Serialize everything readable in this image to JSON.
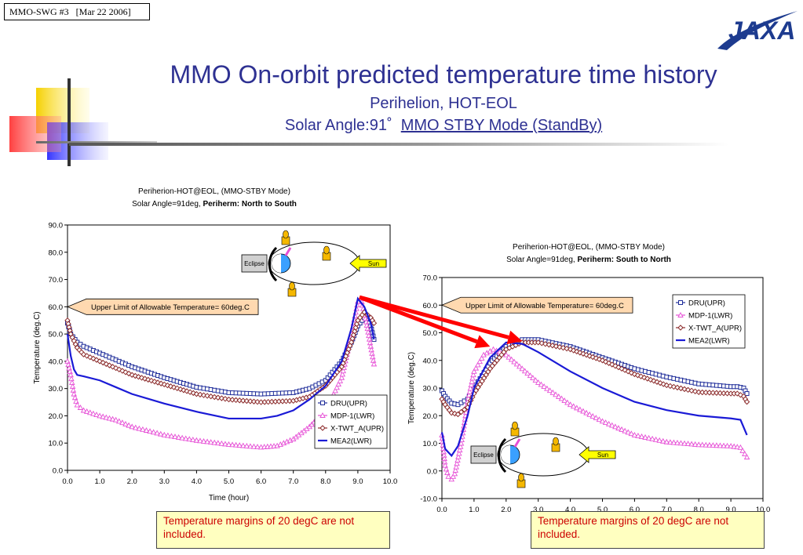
{
  "header": {
    "badge": "MMO-SWG #3   [Mar 22 2006]",
    "logo_text": "JAXA",
    "title": "MMO On-orbit predicted temperature time history",
    "subtitle1": "Perihelion, HOT-EOL",
    "subtitle2_prefix": "Solar Angle:91˚  ",
    "subtitle2_link": "MMO STBY Mode (StandBy)"
  },
  "colors": {
    "title": "#2e3192",
    "dru": "#1f2d9a",
    "mdp": "#e64fd6",
    "twt": "#8b2a2a",
    "mea": "#1a1ad6",
    "arrow": "#ff0000",
    "limit_box": "#ffd9b0",
    "note_bg": "#ffffc0",
    "note_text": "#cc0000"
  },
  "notes": [
    "Temperature margins of 20 degC are not included.",
    "Temperature margins of 20 degC are not included."
  ],
  "chart_data": [
    {
      "type": "line",
      "title": "Periherion-HOT@EOL, (MMO-STBY Mode)",
      "subtitle_prefix": "Solar Angle=91deg, ",
      "subtitle_bold": "Periherm: North to South",
      "xlabel": "Time (hour)",
      "ylabel": "Temperature (deg.C)",
      "xlim": [
        0,
        10
      ],
      "ylim": [
        0,
        90
      ],
      "xticks": [
        "0.0",
        "1.0",
        "2.0",
        "3.0",
        "4.0",
        "5.0",
        "6.0",
        "7.0",
        "8.0",
        "9.0",
        "10.0"
      ],
      "yticks": [
        "0.0",
        "10.0",
        "20.0",
        "30.0",
        "40.0",
        "50.0",
        "60.0",
        "70.0",
        "80.0",
        "90.0"
      ],
      "annotation": "Upper Limit of Allowable Temperature= 60deg.C",
      "inset": {
        "eclipse": "Eclipse",
        "sun": "Sun"
      },
      "legend_position": "bottom-right",
      "series": [
        {
          "name": "DRU(UPR)",
          "key": "dru",
          "x": [
            0.0,
            0.1,
            0.3,
            0.5,
            1.0,
            1.5,
            2.0,
            3.0,
            4.0,
            5.0,
            6.0,
            7.0,
            7.5,
            8.0,
            8.5,
            8.8,
            9.0,
            9.2,
            9.4,
            9.5
          ],
          "y": [
            54,
            50,
            47,
            45.5,
            43,
            40.5,
            38,
            34,
            30.5,
            28.5,
            28,
            28.5,
            30,
            33,
            40,
            47,
            53,
            56,
            53,
            48
          ]
        },
        {
          "name": "MDP-1(LWR)",
          "key": "mdp",
          "x": [
            0.0,
            0.1,
            0.2,
            0.3,
            0.5,
            1.0,
            1.5,
            2.0,
            3.0,
            4.0,
            5.0,
            6.0,
            6.5,
            7.0,
            7.5,
            8.0,
            8.5,
            8.8,
            9.0,
            9.1,
            9.3,
            9.5
          ],
          "y": [
            40,
            35,
            28,
            24,
            22,
            20,
            18.5,
            16,
            13,
            11,
            9.5,
            8.5,
            9,
            11.5,
            16,
            22,
            34,
            50,
            62,
            63,
            52,
            39
          ]
        },
        {
          "name": "X-TWT_A(UPR)",
          "key": "twt",
          "x": [
            0.0,
            0.1,
            0.3,
            0.5,
            1.0,
            1.5,
            2.0,
            3.0,
            4.0,
            5.0,
            6.0,
            7.0,
            7.5,
            8.0,
            8.5,
            8.8,
            9.0,
            9.2,
            9.4,
            9.5
          ],
          "y": [
            55,
            50,
            45,
            42.5,
            40,
            37.5,
            35,
            31.5,
            28,
            26,
            25,
            25.5,
            27,
            31,
            38,
            47,
            55,
            58,
            56,
            54
          ]
        },
        {
          "name": "MEA2(LWR)",
          "key": "mea",
          "x": [
            0.0,
            0.1,
            0.2,
            0.3,
            0.5,
            1.0,
            1.5,
            2.0,
            3.0,
            4.0,
            5.0,
            6.0,
            6.5,
            7.0,
            7.5,
            8.0,
            8.5,
            8.8,
            9.0,
            9.2,
            9.4,
            9.5
          ],
          "y": [
            50,
            42,
            37,
            35,
            34.5,
            33,
            30.5,
            28,
            24.5,
            21.5,
            19,
            19,
            20,
            22,
            26,
            31,
            40,
            52,
            63,
            60,
            54,
            48
          ]
        }
      ]
    },
    {
      "type": "line",
      "title": "Periherion-HOT@EOL, (MMO-STBY Mode)",
      "subtitle_prefix": "Solar Angle=91deg, ",
      "subtitle_bold": "Periherm: South to North",
      "xlabel": "",
      "ylabel": "Temperature (deg.C)",
      "xlim": [
        0,
        10
      ],
      "ylim": [
        -10,
        70
      ],
      "xticks": [
        "0.0",
        "1.0",
        "2.0",
        "3.0",
        "4.0",
        "5.0",
        "6.0",
        "7.0",
        "8.0",
        "9.0",
        "10.0"
      ],
      "yticks": [
        "-10.0",
        "0.0",
        "10.0",
        "20.0",
        "30.0",
        "40.0",
        "50.0",
        "60.0",
        "70.0"
      ],
      "annotation": "Upper Limit of Allowable Temperature= 60deg.C",
      "inset": {
        "eclipse": "Eclipse",
        "sun": "Sun"
      },
      "legend_position": "top-right",
      "series": [
        {
          "name": "DRU(UPR)",
          "key": "dru",
          "x": [
            0.0,
            0.1,
            0.3,
            0.5,
            0.8,
            1.0,
            1.5,
            2.0,
            2.5,
            3.0,
            4.0,
            5.0,
            6.0,
            7.0,
            8.0,
            9.0,
            9.2,
            9.4,
            9.5
          ],
          "y": [
            29,
            27,
            24.5,
            24,
            26,
            30,
            39,
            45,
            47.5,
            47.5,
            45,
            41,
            37,
            34,
            31.5,
            30.5,
            30.5,
            30,
            28
          ]
        },
        {
          "name": "MDP-1(LWR)",
          "key": "mdp",
          "x": [
            0.0,
            0.1,
            0.2,
            0.3,
            0.4,
            0.6,
            0.8,
            1.0,
            1.3,
            1.6,
            2.0,
            2.5,
            3.0,
            4.0,
            5.0,
            6.0,
            7.0,
            8.0,
            9.0,
            9.3,
            9.5
          ],
          "y": [
            13,
            2,
            -2,
            -3,
            -1,
            10,
            25,
            36,
            42,
            44,
            42,
            37,
            32,
            24,
            18,
            13,
            10.5,
            9.5,
            9,
            8.5,
            5
          ]
        },
        {
          "name": "X-TWT_A(UPR)",
          "key": "twt",
          "x": [
            0.0,
            0.1,
            0.3,
            0.5,
            0.8,
            1.0,
            1.5,
            2.0,
            2.5,
            3.0,
            4.0,
            5.0,
            6.0,
            7.0,
            8.0,
            9.0,
            9.2,
            9.4,
            9.5
          ],
          "y": [
            26,
            24,
            21,
            20.5,
            23,
            28,
            37,
            44,
            46.5,
            46.5,
            44,
            40,
            35,
            31,
            28.5,
            28,
            28,
            27,
            25
          ]
        },
        {
          "name": "MEA2(LWR)",
          "key": "mea",
          "x": [
            0.0,
            0.1,
            0.3,
            0.5,
            0.8,
            1.0,
            1.5,
            2.0,
            2.5,
            3.0,
            4.0,
            5.0,
            6.0,
            7.0,
            8.0,
            9.0,
            9.3,
            9.5
          ],
          "y": [
            14,
            8,
            5.5,
            9,
            20,
            30,
            41,
            46.5,
            46,
            43,
            36,
            30,
            25,
            22,
            20,
            19,
            18.5,
            13
          ]
        }
      ]
    }
  ]
}
